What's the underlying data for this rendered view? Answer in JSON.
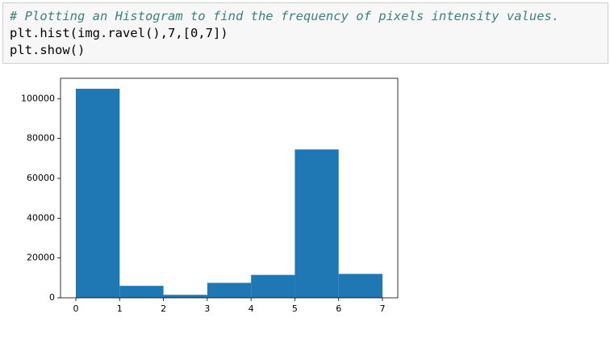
{
  "code": {
    "lines": [
      "# Plotting an Histogram to find the frequency of pixels intensity values.",
      "plt.hist(img.ravel(),7,[0,7])",
      "plt.show()"
    ]
  },
  "chart_data": {
    "type": "histogram",
    "bins": [
      0,
      1,
      2,
      3,
      4,
      5,
      6,
      7
    ],
    "counts": [
      105000,
      6000,
      1500,
      7500,
      11500,
      74500,
      12000
    ],
    "color": "#1f77b4",
    "xlim": [
      -0.35,
      7.35
    ],
    "xticks": [
      0,
      1,
      2,
      3,
      4,
      5,
      6,
      7
    ],
    "ylim": [
      0,
      110250
    ],
    "yticks": [
      0,
      20000,
      40000,
      60000,
      80000,
      100000
    ],
    "grid": false
  }
}
